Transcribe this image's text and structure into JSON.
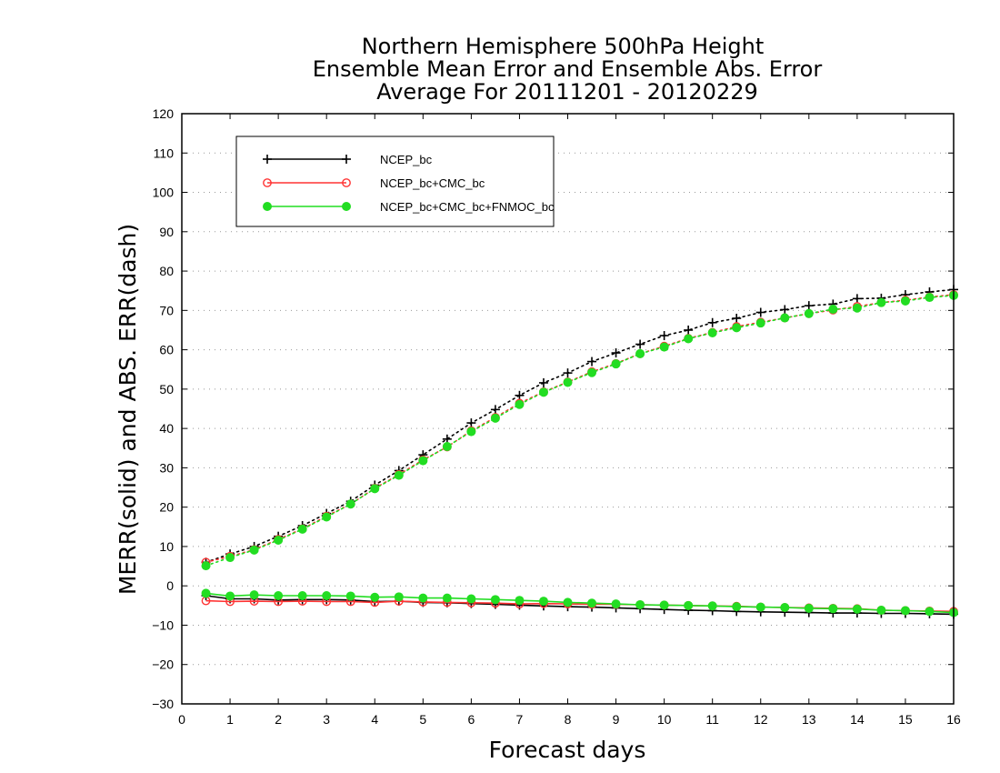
{
  "chart_data": {
    "type": "line",
    "title": [
      "Northern Hemisphere 500hPa Height",
      "Ensemble Mean Error and Ensemble Abs. Error",
      "Average For 20111201 - 20120229"
    ],
    "xlabel": "Forecast days",
    "ylabel": "MERR(solid) and ABS. ERR(dash)",
    "xlim": [
      0,
      16
    ],
    "ylim": [
      -30,
      120
    ],
    "xticks": [
      "0",
      "1",
      "2",
      "3",
      "4",
      "5",
      "6",
      "7",
      "8",
      "9",
      "10",
      "11",
      "12",
      "13",
      "14",
      "15",
      "16"
    ],
    "yticks": [
      "−30",
      "−20",
      "−10",
      "0",
      "10",
      "20",
      "30",
      "40",
      "50",
      "60",
      "70",
      "80",
      "90",
      "100",
      "110",
      "120"
    ],
    "grid": "horizontal dotted",
    "legend_position": "top-left",
    "x": [
      0.5,
      1,
      1.5,
      2,
      2.5,
      3,
      3.5,
      4,
      4.5,
      5,
      5.5,
      6,
      6.5,
      7,
      7.5,
      8,
      8.5,
      9,
      9.5,
      10,
      10.5,
      11,
      11.5,
      12,
      12.5,
      13,
      13.5,
      14,
      14.5,
      15,
      15.5,
      16
    ],
    "series": [
      {
        "name": "NCEP_bc",
        "color": "#000000",
        "marker": "plus",
        "merr": [
          -2.5,
          -3.3,
          -3.3,
          -3.6,
          -3.5,
          -3.5,
          -3.6,
          -4.0,
          -3.9,
          -4.2,
          -4.3,
          -4.5,
          -4.7,
          -4.9,
          -5.1,
          -5.3,
          -5.4,
          -5.6,
          -5.8,
          -6.0,
          -6.2,
          -6.3,
          -6.5,
          -6.6,
          -6.7,
          -6.8,
          -6.9,
          -6.9,
          -7.0,
          -7.0,
          -7.1,
          -7.2
        ],
        "abserr": [
          6.0,
          8.1,
          10.0,
          12.6,
          15.3,
          18.4,
          21.5,
          25.6,
          29.3,
          33.3,
          37.3,
          41.4,
          44.8,
          48.4,
          51.6,
          54.1,
          57.0,
          59.2,
          61.4,
          63.6,
          65.0,
          66.9,
          68.0,
          69.5,
          70.2,
          71.2,
          71.6,
          73.0,
          73.1,
          74.0,
          74.7,
          75.3
        ]
      },
      {
        "name": "NCEP_bc+CMC_bc",
        "color": "#ff3333",
        "marker": "open-circle",
        "merr": [
          -3.8,
          -4.0,
          -3.9,
          -4.0,
          -3.9,
          -4.0,
          -4.0,
          -4.2,
          -3.9,
          -4.1,
          -4.2,
          -4.3,
          -4.4,
          -4.6,
          -4.5,
          -4.6,
          -4.7,
          -4.7,
          -4.8,
          -4.9,
          -5.0,
          -5.1,
          -5.2,
          -5.4,
          -5.5,
          -5.6,
          -5.7,
          -5.8,
          -6.2,
          -6.3,
          -6.4,
          -6.5
        ],
        "abserr": [
          6.0,
          7.5,
          9.2,
          11.8,
          14.5,
          17.7,
          20.8,
          24.8,
          28.3,
          32.0,
          35.3,
          39.4,
          42.8,
          46.4,
          49.3,
          51.8,
          54.4,
          56.5,
          59.0,
          60.9,
          62.9,
          64.4,
          65.9,
          67.0,
          68.1,
          69.2,
          70.1,
          71.0,
          72.0,
          72.6,
          73.4,
          74.0
        ]
      },
      {
        "name": "NCEP_bc+CMC_bc+FNMOC_bc",
        "color": "#22dd22",
        "marker": "filled-circle",
        "merr": [
          -1.9,
          -2.6,
          -2.3,
          -2.5,
          -2.5,
          -2.5,
          -2.6,
          -2.9,
          -2.8,
          -3.1,
          -3.1,
          -3.3,
          -3.5,
          -3.7,
          -3.9,
          -4.2,
          -4.4,
          -4.6,
          -4.8,
          -4.9,
          -5.0,
          -5.1,
          -5.3,
          -5.4,
          -5.5,
          -5.7,
          -5.8,
          -5.9,
          -6.2,
          -6.3,
          -6.5,
          -6.8
        ],
        "abserr": [
          5.1,
          7.2,
          9.1,
          11.6,
          14.4,
          17.5,
          20.8,
          24.7,
          28.1,
          31.8,
          35.4,
          39.2,
          42.6,
          46.1,
          49.2,
          51.7,
          54.2,
          56.4,
          59.0,
          60.7,
          62.8,
          64.3,
          65.6,
          66.8,
          68.1,
          69.2,
          70.3,
          70.6,
          72.0,
          72.4,
          73.3,
          73.8
        ]
      }
    ]
  }
}
